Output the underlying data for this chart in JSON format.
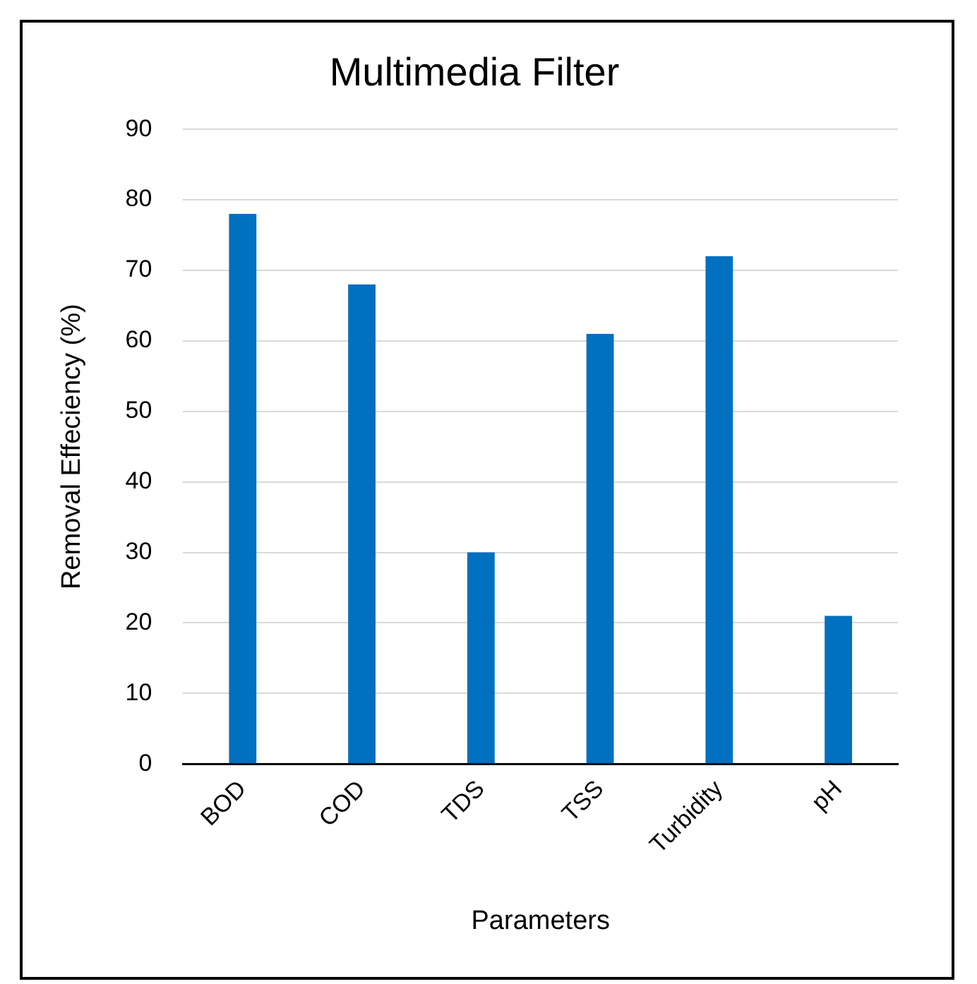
{
  "chart_data": {
    "type": "bar",
    "title": "Multimedia Filter",
    "xlabel": "Parameters",
    "ylabel": "Removal Effeciency (%)",
    "categories": [
      "BOD",
      "COD",
      "TDS",
      "TSS",
      "Turbidity",
      "pH"
    ],
    "values": [
      78,
      68,
      30,
      61,
      72,
      21
    ],
    "color": "#0070c0",
    "ylim": [
      0,
      90
    ],
    "yticks": [
      0,
      10,
      20,
      30,
      40,
      50,
      60,
      70,
      80,
      90
    ],
    "grid": "y",
    "legend": false
  }
}
